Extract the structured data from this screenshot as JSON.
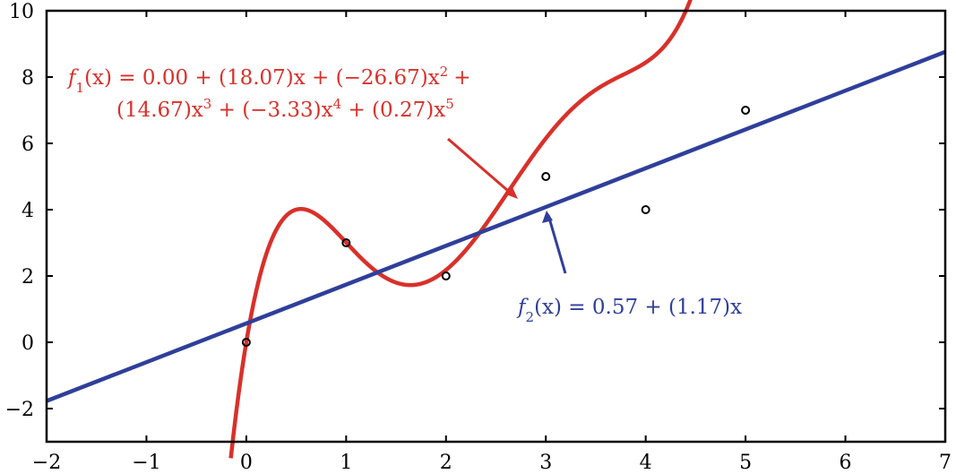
{
  "chart_data": {
    "type": "line",
    "xlim": [
      -2,
      7
    ],
    "ylim": [
      -3,
      10
    ],
    "xticks": [
      -2,
      -1,
      0,
      1,
      2,
      3,
      4,
      5,
      6,
      7
    ],
    "yticks": [
      -2,
      0,
      2,
      4,
      6,
      8,
      10
    ],
    "xtick_labels": [
      "−2",
      "−1",
      "0",
      "1",
      "2",
      "3",
      "4",
      "5",
      "6",
      "7"
    ],
    "ytick_labels": [
      "−2",
      "0",
      "2",
      "4",
      "6",
      "8",
      "10"
    ],
    "grid": false,
    "points": {
      "x": [
        0,
        1,
        2,
        3,
        4,
        5
      ],
      "y": [
        0,
        3,
        2,
        5,
        4,
        7
      ],
      "color": "#000000"
    },
    "series": [
      {
        "kind": "polynomial",
        "color": "#d9302a",
        "coefficients": [
          0.0,
          18.07,
          -26.67,
          14.67,
          -3.33,
          0.27
        ],
        "label_line1": {
          "pre": "f",
          "sub": "1",
          "post": "(x) = 0.00 + (18.07)x + (−26.67)x",
          "sup": "2",
          "tail": "+"
        },
        "label_line2": [
          {
            "t": "(14.67)x",
            "sup": "3"
          },
          {
            "t": " + (−3.33)x",
            "sup": "4"
          },
          {
            "t": " + (0.27)x",
            "sup": "5"
          }
        ]
      },
      {
        "kind": "linear",
        "color": "#2f3f9a",
        "coefficients": [
          0.57,
          1.17
        ],
        "label": {
          "pre": "f",
          "sub": "2",
          "post": "(x) = 0.57 + (1.17)x"
        }
      }
    ]
  }
}
